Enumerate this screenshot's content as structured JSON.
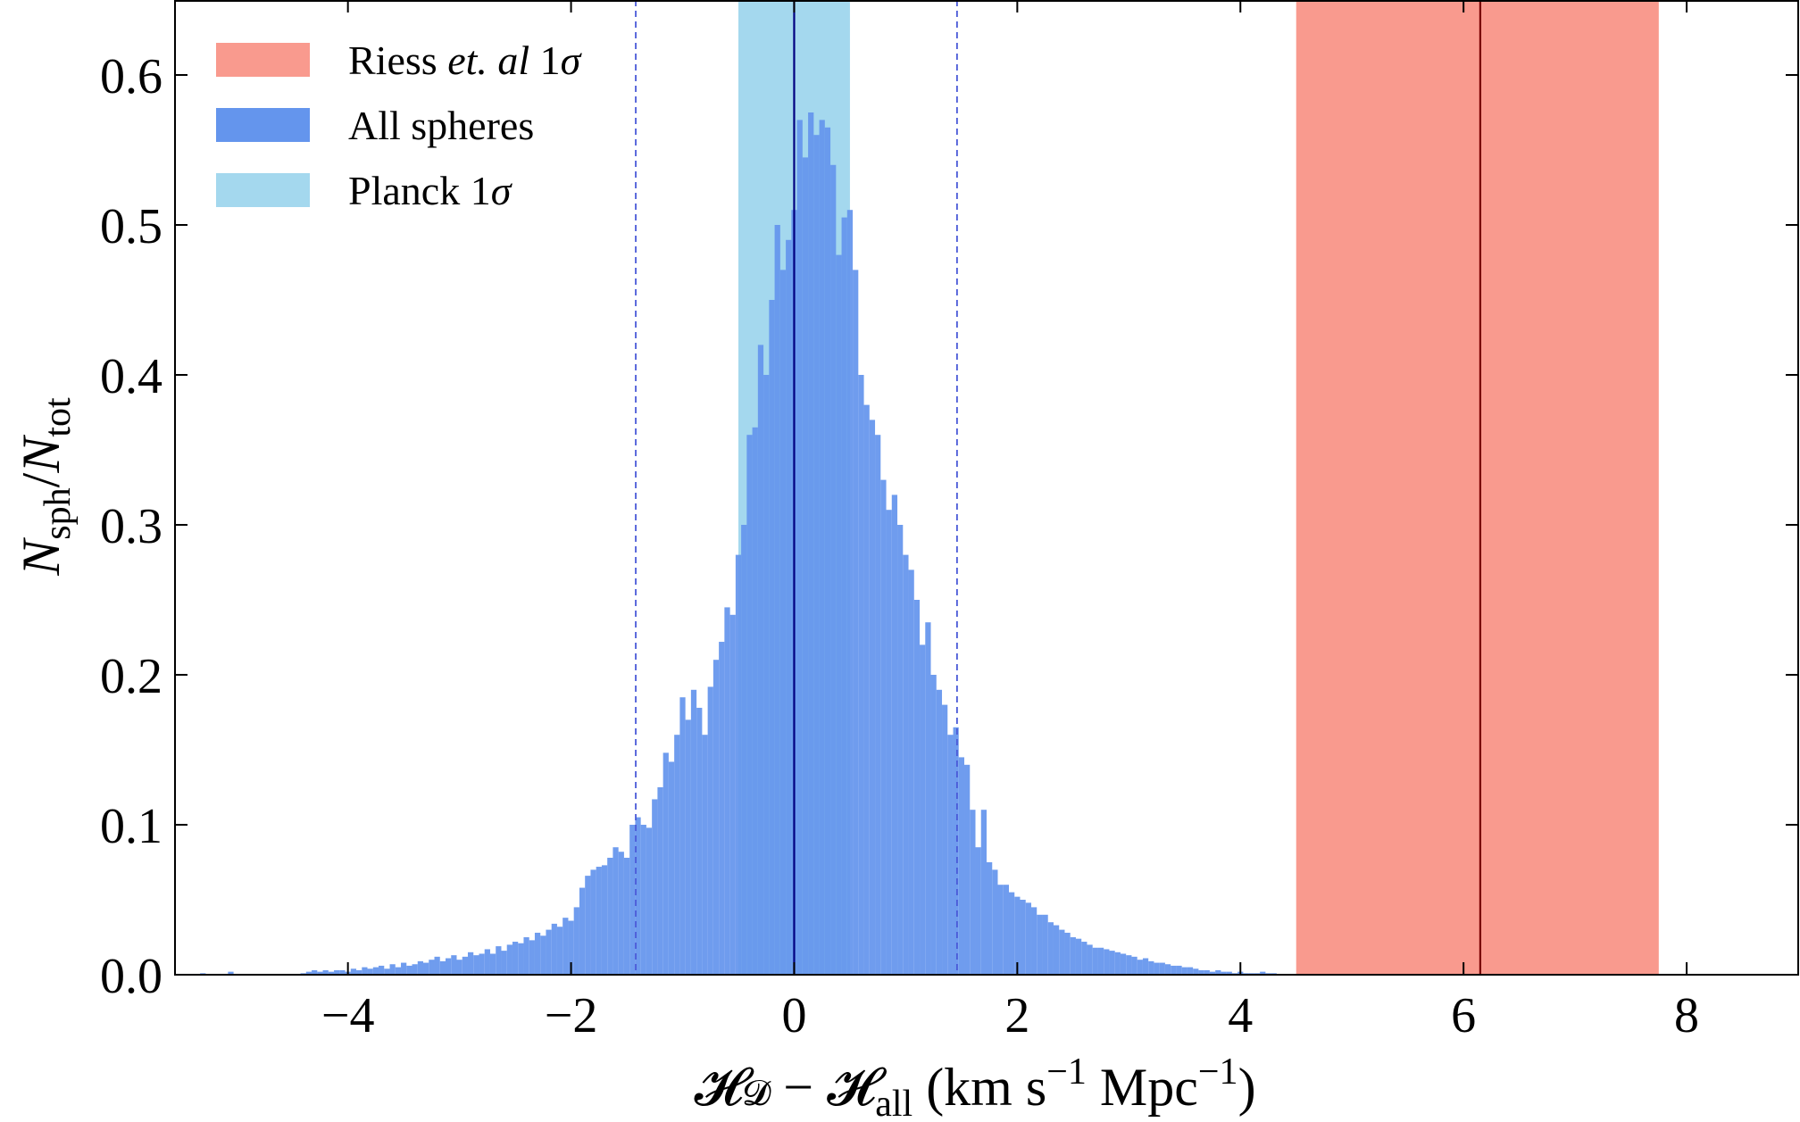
{
  "chart_data": {
    "type": "bar",
    "xlabel_parts": {
      "h1": "𝓗",
      "d": "𝓓",
      "minus": " − ",
      "h2": "𝓗",
      "all": "all",
      "units_a": " (km s",
      "exp1": "−1",
      "units_b": " Mpc",
      "exp2": "−1",
      "units_c": ")"
    },
    "ylabel_parts": {
      "n1": "N",
      "sub1": "sph",
      "slash": "/",
      "n2": "N",
      "sub2": "tot"
    },
    "xlim": [
      -5.55,
      9.0
    ],
    "ylim": [
      0.0,
      0.65
    ],
    "xticks": [
      -4,
      -2,
      0,
      2,
      4,
      6,
      8
    ],
    "xtick_labels": [
      "−4",
      "−2",
      "0",
      "2",
      "4",
      "6",
      "8"
    ],
    "yticks": [
      0.0,
      0.1,
      0.2,
      0.3,
      0.4,
      0.5,
      0.6
    ],
    "ytick_labels": [
      "0.0",
      "0.1",
      "0.2",
      "0.3",
      "0.4",
      "0.5",
      "0.6"
    ],
    "legend_position": "top-left",
    "legend": [
      {
        "key": "riess",
        "color": "#f99a8e",
        "label": "Riess ",
        "label_it": "et. al",
        "label_tail": " 1",
        "label_sigma": "σ"
      },
      {
        "key": "all",
        "color": "#6495ed",
        "label": "All spheres",
        "label_it": "",
        "label_tail": "",
        "label_sigma": ""
      },
      {
        "key": "planck",
        "color": "#a4d8ee",
        "label": "Planck 1",
        "label_it": "",
        "label_tail": "",
        "label_sigma": "σ"
      }
    ],
    "bands": [
      {
        "name": "Planck 1σ",
        "x0": -0.5,
        "x1": 0.5,
        "color": "#a4d8ee"
      },
      {
        "name": "Riess et. al 1σ",
        "x0": 4.5,
        "x1": 7.75,
        "color": "#f99a8e"
      }
    ],
    "vlines": [
      {
        "x": 0.0,
        "style": "solid",
        "color": "#000080"
      },
      {
        "x": 6.15,
        "style": "solid",
        "color": "#7a0000"
      },
      {
        "x": -1.42,
        "style": "dashed",
        "color": "#4a5ad8"
      },
      {
        "x": 1.46,
        "style": "dashed",
        "color": "#4a5ad8"
      }
    ],
    "series": [
      {
        "name": "All spheres",
        "color": "#6495ed",
        "bin_width": 0.05,
        "bin_centers": [
          -5.3,
          -5.25,
          -5.2,
          -5.15,
          -5.1,
          -5.05,
          -5.0,
          -4.95,
          -4.9,
          -4.85,
          -4.8,
          -4.75,
          -4.7,
          -4.65,
          -4.6,
          -4.55,
          -4.5,
          -4.45,
          -4.4,
          -4.35,
          -4.3,
          -4.25,
          -4.2,
          -4.15,
          -4.1,
          -4.05,
          -4.0,
          -3.95,
          -3.9,
          -3.85,
          -3.8,
          -3.75,
          -3.7,
          -3.65,
          -3.6,
          -3.55,
          -3.5,
          -3.45,
          -3.4,
          -3.35,
          -3.3,
          -3.25,
          -3.2,
          -3.15,
          -3.1,
          -3.05,
          -3.0,
          -2.95,
          -2.9,
          -2.85,
          -2.8,
          -2.75,
          -2.7,
          -2.65,
          -2.6,
          -2.55,
          -2.5,
          -2.45,
          -2.4,
          -2.35,
          -2.3,
          -2.25,
          -2.2,
          -2.15,
          -2.1,
          -2.05,
          -2.0,
          -1.95,
          -1.9,
          -1.85,
          -1.8,
          -1.75,
          -1.7,
          -1.65,
          -1.6,
          -1.55,
          -1.5,
          -1.45,
          -1.4,
          -1.35,
          -1.3,
          -1.25,
          -1.2,
          -1.15,
          -1.1,
          -1.05,
          -1.0,
          -0.95,
          -0.9,
          -0.85,
          -0.8,
          -0.75,
          -0.7,
          -0.65,
          -0.6,
          -0.55,
          -0.5,
          -0.45,
          -0.4,
          -0.35,
          -0.3,
          -0.25,
          -0.2,
          -0.15,
          -0.1,
          -0.05,
          0.0,
          0.05,
          0.1,
          0.15,
          0.2,
          0.25,
          0.3,
          0.35,
          0.4,
          0.45,
          0.5,
          0.55,
          0.6,
          0.65,
          0.7,
          0.75,
          0.8,
          0.85,
          0.9,
          0.95,
          1.0,
          1.05,
          1.1,
          1.15,
          1.2,
          1.25,
          1.3,
          1.35,
          1.4,
          1.45,
          1.5,
          1.55,
          1.6,
          1.65,
          1.7,
          1.75,
          1.8,
          1.85,
          1.9,
          1.95,
          2.0,
          2.05,
          2.1,
          2.15,
          2.2,
          2.25,
          2.3,
          2.35,
          2.4,
          2.45,
          2.5,
          2.55,
          2.6,
          2.65,
          2.7,
          2.75,
          2.8,
          2.85,
          2.9,
          2.95,
          3.0,
          3.05,
          3.1,
          3.15,
          3.2,
          3.25,
          3.3,
          3.35,
          3.4,
          3.45,
          3.5,
          3.55,
          3.6,
          3.65,
          3.7,
          3.75,
          3.8,
          3.85,
          3.9,
          3.95,
          4.0,
          4.05,
          4.1,
          4.15,
          4.2,
          4.25,
          4.3
        ],
        "values": [
          0.001,
          0,
          0,
          0,
          0,
          0.002,
          0,
          0,
          0,
          0,
          0,
          0,
          0,
          0,
          0,
          0,
          0,
          0,
          0.001,
          0.002,
          0.003,
          0.002,
          0.003,
          0.002,
          0.003,
          0.003,
          0.002,
          0.004,
          0.003,
          0.005,
          0.004,
          0.005,
          0.006,
          0.004,
          0.007,
          0.005,
          0.008,
          0.006,
          0.007,
          0.009,
          0.008,
          0.01,
          0.012,
          0.009,
          0.011,
          0.013,
          0.01,
          0.012,
          0.015,
          0.013,
          0.014,
          0.017,
          0.014,
          0.019,
          0.016,
          0.02,
          0.022,
          0.021,
          0.025,
          0.023,
          0.028,
          0.026,
          0.03,
          0.034,
          0.032,
          0.038,
          0.036,
          0.045,
          0.058,
          0.066,
          0.07,
          0.072,
          0.073,
          0.078,
          0.085,
          0.082,
          0.078,
          0.1,
          0.105,
          0.1,
          0.098,
          0.117,
          0.125,
          0.148,
          0.142,
          0.16,
          0.185,
          0.17,
          0.19,
          0.178,
          0.16,
          0.192,
          0.21,
          0.222,
          0.245,
          0.24,
          0.28,
          0.3,
          0.36,
          0.365,
          0.42,
          0.4,
          0.45,
          0.5,
          0.47,
          0.49,
          0.51,
          0.57,
          0.545,
          0.575,
          0.56,
          0.57,
          0.565,
          0.54,
          0.48,
          0.505,
          0.51,
          0.47,
          0.4,
          0.38,
          0.37,
          0.36,
          0.33,
          0.31,
          0.32,
          0.3,
          0.28,
          0.27,
          0.25,
          0.22,
          0.235,
          0.2,
          0.19,
          0.18,
          0.16,
          0.165,
          0.145,
          0.14,
          0.11,
          0.085,
          0.11,
          0.075,
          0.07,
          0.06,
          0.06,
          0.055,
          0.052,
          0.05,
          0.048,
          0.045,
          0.04,
          0.04,
          0.035,
          0.033,
          0.03,
          0.028,
          0.025,
          0.024,
          0.022,
          0.02,
          0.018,
          0.018,
          0.017,
          0.016,
          0.015,
          0.014,
          0.013,
          0.012,
          0.01,
          0.011,
          0.009,
          0.008,
          0.008,
          0.007,
          0.006,
          0.006,
          0.005,
          0.005,
          0.004,
          0.003,
          0.003,
          0.002,
          0.003,
          0.002,
          0.002,
          0.001,
          0.002,
          0.001,
          0.001,
          0.001,
          0.002,
          0.001,
          0.001
        ]
      }
    ]
  }
}
